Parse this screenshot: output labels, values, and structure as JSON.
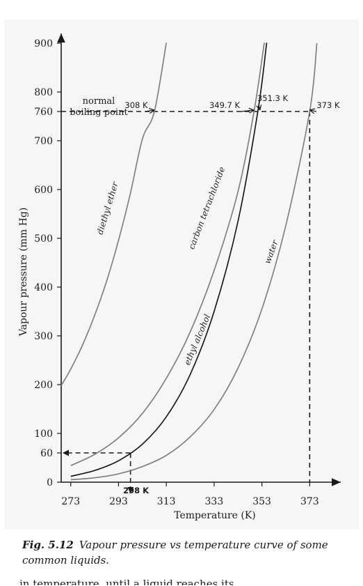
{
  "chart_data": {
    "type": "line",
    "xlabel": "Temperature (K)",
    "ylabel": "Vapour pressure (mm Hg)",
    "xlim": [
      269,
      386
    ],
    "ylim": [
      0,
      920
    ],
    "x_ticks": [
      "273",
      "293",
      "313",
      "333",
      "353",
      "373"
    ],
    "y_ticks": [
      "0",
      "100",
      "200",
      "300",
      "400",
      "500",
      "600",
      "700",
      "800",
      "900"
    ],
    "extra_y_ticks": [
      "60",
      "760"
    ],
    "extra_x_tick": "298 K",
    "grid": false,
    "series": [
      {
        "name": "diethyl ether",
        "color": "#808080",
        "boiling_point_label": "308 K",
        "points": [
          [
            269,
            198
          ],
          [
            273,
            232
          ],
          [
            278,
            282
          ],
          [
            283,
            342
          ],
          [
            288,
            412
          ],
          [
            293,
            496
          ],
          [
            298,
            593
          ],
          [
            303,
            704
          ],
          [
            308,
            760
          ],
          [
            313,
            901
          ]
        ]
      },
      {
        "name": "carbon tetrachloride",
        "color": "#808080",
        "boiling_point_label": "349.7 K",
        "points": [
          [
            273,
            34
          ],
          [
            283,
            57
          ],
          [
            293,
            91
          ],
          [
            303,
            141
          ],
          [
            313,
            213
          ],
          [
            323,
            308
          ],
          [
            333,
            434
          ],
          [
            343,
            596
          ],
          [
            349.7,
            760
          ],
          [
            354,
            901
          ]
        ]
      },
      {
        "name": "ethyl alcohol",
        "color": "#1a1a1a",
        "boiling_point_label": "351.3 K",
        "points": [
          [
            273,
            12
          ],
          [
            283,
            24
          ],
          [
            293,
            44
          ],
          [
            303,
            78
          ],
          [
            313,
            134
          ],
          [
            323,
            221
          ],
          [
            333,
            350
          ],
          [
            343,
            535
          ],
          [
            351.3,
            760
          ],
          [
            355,
            901
          ]
        ]
      },
      {
        "name": "water",
        "color": "#808080",
        "boiling_point_label": "373 K",
        "points": [
          [
            273,
            5
          ],
          [
            283,
            9
          ],
          [
            293,
            17
          ],
          [
            303,
            32
          ],
          [
            313,
            55
          ],
          [
            323,
            93
          ],
          [
            333,
            149
          ],
          [
            343,
            234
          ],
          [
            353,
            355
          ],
          [
            363,
            526
          ],
          [
            373,
            760
          ],
          [
            376,
            900
          ]
        ]
      }
    ],
    "annotations": {
      "normal_boiling_point": [
        "normal",
        "boiling point"
      ],
      "reference_pressure": 760,
      "reference_temperature": 298,
      "reference_vapour_pressure": 60
    }
  },
  "caption": {
    "number": "Fig. 5.12",
    "text": "Vapour pressure vs temperature curve of some common liquids."
  },
  "trailing_text": "in temperature, until a liquid reaches its"
}
